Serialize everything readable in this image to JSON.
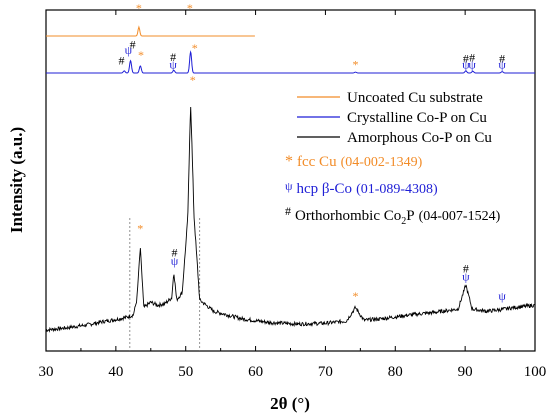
{
  "chart_data": {
    "type": "line",
    "xlabel": "2θ (°)",
    "ylabel": "Intensity (a.u.)",
    "xlim": [
      30,
      100
    ],
    "xticks": [
      "30",
      "40",
      "50",
      "60",
      "70",
      "80",
      "90",
      "100"
    ],
    "grid": false,
    "legend_position": "right",
    "colors": {
      "cu": "#f28c28",
      "co": "#1f1fd6",
      "amorph": "#000000"
    },
    "series": [
      {
        "name": "Uncoated Cu substrate",
        "color": "#f28c28",
        "x_range": [
          30,
          60
        ],
        "baseline": 100,
        "peaks": [
          {
            "x": 43.3,
            "y": 106
          }
        ]
      },
      {
        "name": "Crystalline Co-P on Cu",
        "color": "#1f1fd6",
        "x_range": [
          30,
          100
        ],
        "baseline": 100,
        "peaks": [
          {
            "x": 41.2,
            "y": 101.2
          },
          {
            "x": 42.1,
            "y": 107
          },
          {
            "x": 43.5,
            "y": 104
          },
          {
            "x": 48.3,
            "y": 101.5
          },
          {
            "x": 50.7,
            "y": 112
          },
          {
            "x": 74.3,
            "y": 100.5
          },
          {
            "x": 90.1,
            "y": 101.2
          },
          {
            "x": 91.1,
            "y": 101
          },
          {
            "x": 95.3,
            "y": 100.8
          }
        ]
      },
      {
        "name": "Amorphous Co-P on Cu",
        "color": "#000000",
        "x": [
          30,
          33,
          36,
          38,
          40,
          41.5,
          42.5,
          43,
          43.5,
          44,
          45,
          46,
          47,
          48,
          48.3,
          48.7,
          49.5,
          50.3,
          50.7,
          51.2,
          52,
          54,
          58,
          62,
          66,
          70,
          73,
          74.3,
          75.5,
          78,
          82,
          86,
          89,
          90.1,
          91,
          93,
          95,
          97,
          100
        ],
        "y": [
          0,
          3,
          7,
          11,
          14,
          17,
          20,
          40,
          110,
          30,
          37,
          33,
          35,
          43,
          78,
          40,
          50,
          150,
          305,
          150,
          40,
          25,
          15,
          10,
          8,
          9,
          12,
          30,
          13,
          15,
          20,
          24,
          28,
          60,
          28,
          25,
          27,
          30,
          33
        ]
      }
    ],
    "markers": [
      {
        "symbol": "*",
        "series": "cu",
        "x": 43.3,
        "color": "#f28c28",
        "y": 116
      },
      {
        "symbol": "*",
        "series": "cu",
        "x": 50.6,
        "color": "#f28c28",
        "y": 116
      },
      {
        "symbol": "ψ",
        "series": "co",
        "x": 41.8,
        "color": "#1f1fd6",
        "y": 111
      },
      {
        "symbol": "#",
        "series": "co",
        "x": 42.4,
        "color": "#000000",
        "y": 114
      },
      {
        "symbol": "#",
        "series": "co",
        "x": 40.8,
        "color": "#000000",
        "y": 105
      },
      {
        "symbol": "*",
        "series": "co",
        "x": 43.6,
        "color": "#f28c28",
        "y": 108
      },
      {
        "symbol": "#",
        "series": "co",
        "x": 48.2,
        "color": "#000000",
        "y": 107
      },
      {
        "symbol": "ψ",
        "series": "co",
        "x": 48.2,
        "color": "#1f1fd6",
        "y": 102.5
      },
      {
        "symbol": "*",
        "series": "co",
        "x": 51.3,
        "color": "#f28c28",
        "y": 112
      },
      {
        "symbol": "*",
        "series": "co",
        "x": 74.3,
        "color": "#f28c28",
        "y": 102.5
      },
      {
        "symbol": "#",
        "series": "co",
        "x": 90.1,
        "color": "#000000",
        "y": 106
      },
      {
        "symbol": "ψ",
        "series": "co",
        "x": 90.1,
        "color": "#1f1fd6",
        "y": 102.5
      },
      {
        "symbol": "#",
        "series": "co",
        "x": 91.0,
        "color": "#000000",
        "y": 106.5
      },
      {
        "symbol": "ψ",
        "series": "co",
        "x": 91.0,
        "color": "#1f1fd6",
        "y": 102.5
      },
      {
        "symbol": "#",
        "series": "co",
        "x": 95.3,
        "color": "#000000",
        "y": 106
      },
      {
        "symbol": "ψ",
        "series": "co",
        "x": 95.3,
        "color": "#1f1fd6",
        "y": 102.5
      },
      {
        "symbol": "*",
        "series": "amorph",
        "x": 51.0,
        "color": "#f28c28",
        "y": 328
      },
      {
        "symbol": "*",
        "series": "amorph",
        "x": 43.5,
        "color": "#f28c28",
        "y": 130
      },
      {
        "symbol": "#",
        "series": "amorph",
        "x": 48.4,
        "color": "#000000",
        "y": 98
      },
      {
        "symbol": "ψ",
        "series": "amorph",
        "x": 48.4,
        "color": "#1f1fd6",
        "y": 87
      },
      {
        "symbol": "*",
        "series": "amorph",
        "x": 74.3,
        "color": "#f28c28",
        "y": 40
      },
      {
        "symbol": "#",
        "series": "amorph",
        "x": 90.1,
        "color": "#000000",
        "y": 77
      },
      {
        "symbol": "ψ",
        "series": "amorph",
        "x": 90.1,
        "color": "#1f1fd6",
        "y": 66
      },
      {
        "symbol": "ψ",
        "series": "amorph",
        "x": 95.3,
        "color": "#1f1fd6",
        "y": 40
      }
    ],
    "reference_lines_x": [
      42,
      52
    ],
    "legend": [
      {
        "label": "Uncoated Cu substrate",
        "color": "#f28c28"
      },
      {
        "label": "Crystalline Co-P on Cu",
        "color": "#1f1fd6"
      },
      {
        "label": "Amorphous Co-P on Cu",
        "color": "#000000"
      }
    ],
    "phase_legend": [
      {
        "symbol": "*",
        "name": "fcc Cu",
        "pdf": "(04-002-1349)",
        "color": "#f28c28"
      },
      {
        "symbol": "ψ",
        "name": "hcp β-Co",
        "pdf": "(01-089-4308)",
        "color": "#1f1fd6"
      },
      {
        "symbol": "#",
        "name_main": "Orthorhombic Co",
        "name_sub": "2",
        "name_tail": "P",
        "pdf": "(04-007-1524)",
        "color": "#000000"
      }
    ]
  }
}
